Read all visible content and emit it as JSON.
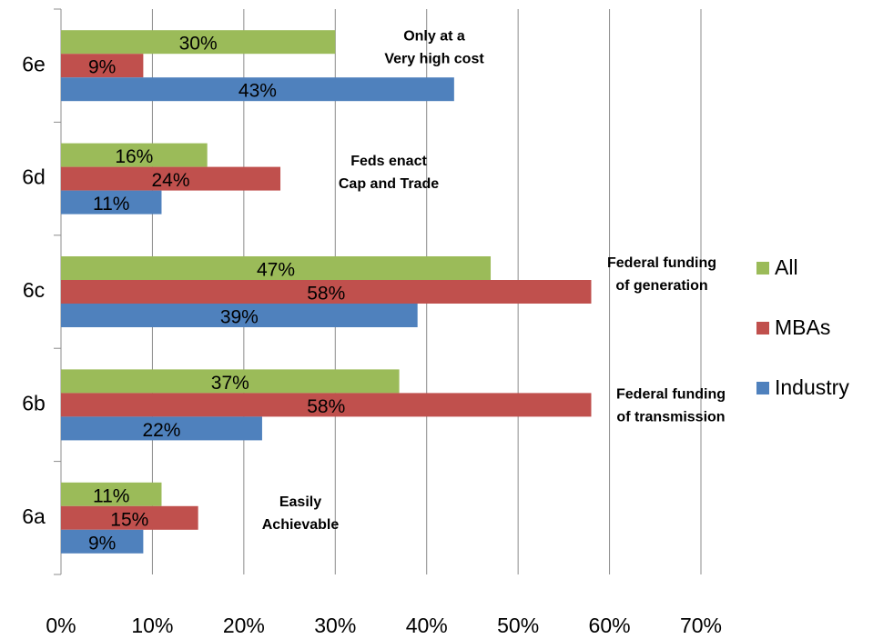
{
  "chart_data": {
    "type": "bar",
    "orientation": "horizontal",
    "categories": [
      "6a",
      "6b",
      "6c",
      "6d",
      "6e"
    ],
    "series": [
      {
        "name": "All",
        "color": "#9bbb59",
        "values": [
          11,
          37,
          47,
          16,
          30
        ],
        "value_labels": [
          "11%",
          "37%",
          "47%",
          "16%",
          "30%"
        ]
      },
      {
        "name": "MBAs",
        "color": "#c0504d",
        "values": [
          15,
          58,
          58,
          24,
          9
        ],
        "value_labels": [
          "15%",
          "58%",
          "58%",
          "24%",
          "9%"
        ]
      },
      {
        "name": "Industry",
        "color": "#4f81bd",
        "values": [
          9,
          22,
          39,
          11,
          43
        ],
        "value_labels": [
          "9%",
          "22%",
          "39%",
          "11%",
          "43%"
        ]
      }
    ],
    "annotations": [
      [
        "Easily",
        "Achievable"
      ],
      [
        "Federal funding",
        "of transmission"
      ],
      [
        "Federal funding",
        "of generation"
      ],
      [
        "Feds enact",
        "Cap and Trade"
      ],
      [
        "Only at a",
        "Very high cost"
      ]
    ],
    "xlim": [
      0,
      70
    ],
    "xticks": [
      {
        "value": 0,
        "label": "0%"
      },
      {
        "value": 10,
        "label": "10%"
      },
      {
        "value": 20,
        "label": "20%"
      },
      {
        "value": 30,
        "label": "30%"
      },
      {
        "value": 40,
        "label": "40%"
      },
      {
        "value": 50,
        "label": "50%"
      },
      {
        "value": 60,
        "label": "60%"
      },
      {
        "value": 70,
        "label": "70%"
      }
    ],
    "grid": true,
    "legend": "right"
  }
}
